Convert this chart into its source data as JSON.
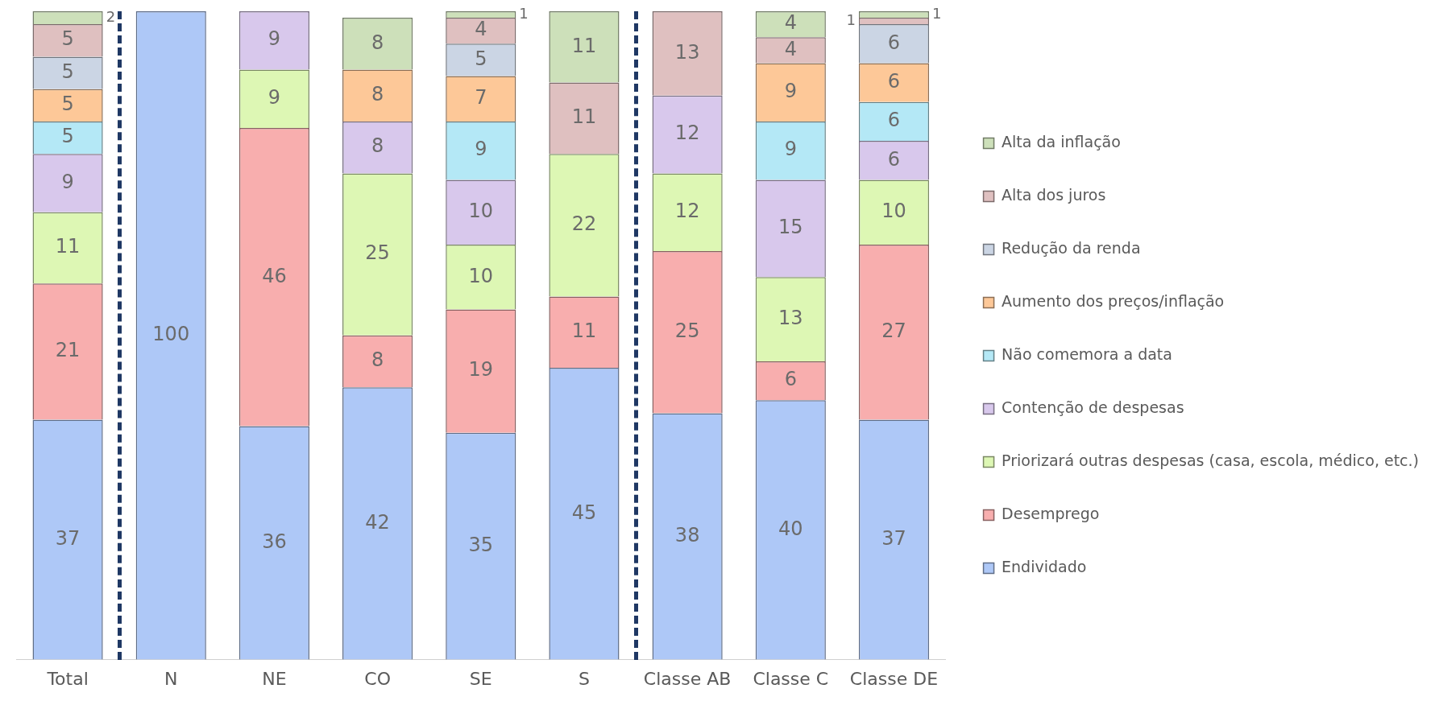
{
  "chart_data": {
    "type": "bar",
    "stacked": true,
    "data_labels": true,
    "legend": "right",
    "grid": false,
    "categories": [
      "Total",
      "N",
      "NE",
      "CO",
      "SE",
      "S",
      "Classe AB",
      "Classe C",
      "Classe DE"
    ],
    "series": [
      {
        "name": "Endividado",
        "color": "#aec8f7",
        "values": [
          37,
          100,
          36,
          42,
          35,
          45,
          38,
          40,
          37
        ]
      },
      {
        "name": "Desemprego",
        "color": "#f8aeae",
        "values": [
          21,
          null,
          46,
          8,
          19,
          11,
          25,
          6,
          27
        ]
      },
      {
        "name": "Priorizará outras despesas (casa, escola, médico, etc.)",
        "color": "#ddf7b4",
        "values": [
          11,
          null,
          9,
          25,
          10,
          22,
          12,
          13,
          10
        ]
      },
      {
        "name": "Contenção de despesas",
        "color": "#d8c8ec",
        "values": [
          9,
          null,
          9,
          8,
          10,
          null,
          12,
          15,
          6
        ]
      },
      {
        "name": "Não comemora a data",
        "color": "#b4e8f6",
        "values": [
          5,
          null,
          null,
          null,
          9,
          null,
          null,
          9,
          6
        ]
      },
      {
        "name": "Aumento dos preços/inflação",
        "color": "#fdc898",
        "values": [
          5,
          null,
          null,
          8,
          7,
          null,
          null,
          9,
          6
        ]
      },
      {
        "name": "Redução da renda",
        "color": "#cbd5e4",
        "values": [
          5,
          null,
          null,
          null,
          5,
          null,
          null,
          null,
          6
        ]
      },
      {
        "name": "Alta dos juros",
        "color": "#dfc0c0",
        "values": [
          5,
          null,
          null,
          null,
          4,
          11,
          13,
          4,
          1
        ]
      },
      {
        "name": "Alta da inflação",
        "color": "#cde0ba",
        "values": [
          2,
          null,
          null,
          8,
          1,
          11,
          null,
          4,
          1
        ]
      }
    ]
  }
}
